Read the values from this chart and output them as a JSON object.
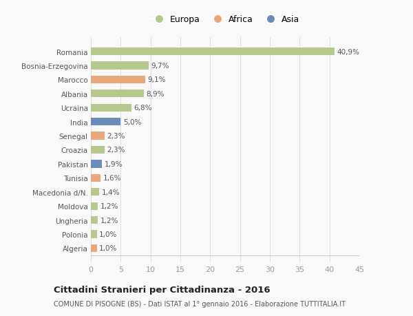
{
  "categories": [
    "Algeria",
    "Polonia",
    "Ungheria",
    "Moldova",
    "Macedonia d/N.",
    "Tunisia",
    "Pakistan",
    "Croazia",
    "Senegal",
    "India",
    "Ucraina",
    "Albania",
    "Marocco",
    "Bosnia-Erzegovina",
    "Romania"
  ],
  "values": [
    1.0,
    1.0,
    1.2,
    1.2,
    1.4,
    1.6,
    1.9,
    2.3,
    2.3,
    5.0,
    6.8,
    8.9,
    9.1,
    9.7,
    40.9
  ],
  "labels": [
    "1,0%",
    "1,0%",
    "1,2%",
    "1,2%",
    "1,4%",
    "1,6%",
    "1,9%",
    "2,3%",
    "2,3%",
    "5,0%",
    "6,8%",
    "8,9%",
    "9,1%",
    "9,7%",
    "40,9%"
  ],
  "colors": [
    "#e8a87c",
    "#b5c98e",
    "#b5c98e",
    "#b5c98e",
    "#b5c98e",
    "#e8a87c",
    "#6b8cba",
    "#b5c98e",
    "#e8a87c",
    "#6b8cba",
    "#b5c98e",
    "#b5c98e",
    "#e8a87c",
    "#b5c98e",
    "#b5c98e"
  ],
  "legend_labels": [
    "Europa",
    "Africa",
    "Asia"
  ],
  "legend_colors": [
    "#b5c98e",
    "#e8a87c",
    "#6b8cba"
  ],
  "title": "Cittadini Stranieri per Cittadinanza - 2016",
  "subtitle": "COMUNE DI PISOGNE (BS) - Dati ISTAT al 1° gennaio 2016 - Elaborazione TUTTITALIA.IT",
  "xlim": [
    0,
    45
  ],
  "xticks": [
    0,
    5,
    10,
    15,
    20,
    25,
    30,
    35,
    40,
    45
  ],
  "bg_color": "#f9f9f9",
  "grid_color": "#e0e0e0",
  "bar_height": 0.55
}
